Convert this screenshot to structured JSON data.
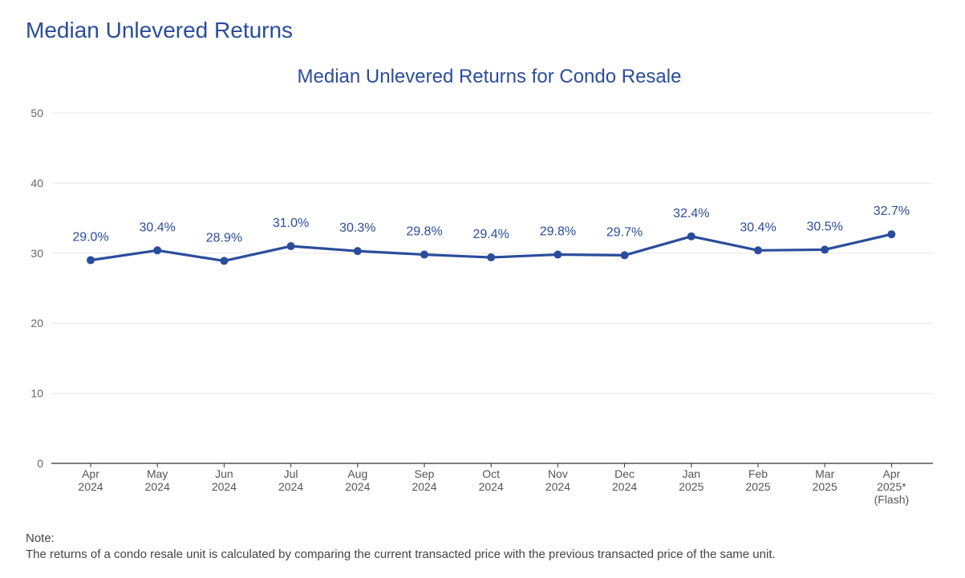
{
  "page": {
    "title": "Median Unlevered Returns"
  },
  "note": {
    "heading": "Note:",
    "text": "The returns of a condo resale unit is calculated by comparing the current transacted price with the previous transacted price of the same unit."
  },
  "colors": {
    "accent": "#2a4d9b",
    "grid": "#e6e6e6",
    "axis": "#333333"
  },
  "chart_data": {
    "type": "line",
    "title": "Median Unlevered Returns for Condo Resale",
    "xlabel": "",
    "ylabel": "",
    "ylim": [
      0,
      50
    ],
    "yticks": [
      0,
      10,
      20,
      30,
      40,
      50
    ],
    "grid": true,
    "categories": [
      [
        "Apr",
        "2024"
      ],
      [
        "May",
        "2024"
      ],
      [
        "Jun",
        "2024"
      ],
      [
        "Jul",
        "2024"
      ],
      [
        "Aug",
        "2024"
      ],
      [
        "Sep",
        "2024"
      ],
      [
        "Oct",
        "2024"
      ],
      [
        "Nov",
        "2024"
      ],
      [
        "Dec",
        "2024"
      ],
      [
        "Jan",
        "2025"
      ],
      [
        "Feb",
        "2025"
      ],
      [
        "Mar",
        "2025"
      ],
      [
        "Apr",
        "2025*",
        "(Flash)"
      ]
    ],
    "series": [
      {
        "values": [
          29.0,
          30.4,
          28.9,
          31.0,
          30.3,
          29.8,
          29.4,
          29.8,
          29.7,
          32.4,
          30.4,
          30.5,
          32.7
        ],
        "labels": [
          "29.0%",
          "30.4%",
          "28.9%",
          "31.0%",
          "30.3%",
          "29.8%",
          "29.4%",
          "29.8%",
          "29.7%",
          "32.4%",
          "30.4%",
          "30.5%",
          "32.7%"
        ]
      }
    ]
  }
}
